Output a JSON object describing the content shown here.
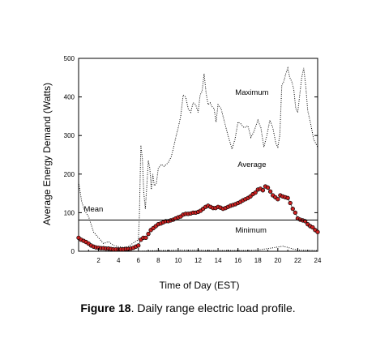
{
  "caption": {
    "label": "Figure 18",
    "text": ".  Daily range electric load profile."
  },
  "chart_data": {
    "type": "line",
    "xlabel": "Time of Day (EST)",
    "ylabel": "Average Energy Demand (Watts)",
    "xlim": [
      0,
      24
    ],
    "ylim": [
      0,
      500
    ],
    "x_ticks": [
      2,
      4,
      6,
      8,
      10,
      12,
      14,
      16,
      18,
      20,
      22,
      24
    ],
    "y_ticks": [
      0,
      100,
      200,
      300,
      400,
      500
    ],
    "grid": false,
    "colors": {
      "average_marker": "#cc2222",
      "lines": "#000000"
    },
    "annotations": [
      {
        "text": "Maximum",
        "x": 17.4,
        "y": 405
      },
      {
        "text": "Average",
        "x": 17.4,
        "y": 218
      },
      {
        "text": "Mean",
        "x": 1.5,
        "y": 103
      },
      {
        "text": "Minimum",
        "x": 17.3,
        "y": 48
      }
    ],
    "series": [
      {
        "name": "Maximum",
        "style": "dotted",
        "x": [
          0,
          0.3,
          0.6,
          1.0,
          1.5,
          2.0,
          2.5,
          3.0,
          3.5,
          4.0,
          4.5,
          5.0,
          5.4,
          5.7,
          6.0,
          6.1,
          6.25,
          6.4,
          6.55,
          6.7,
          6.85,
          7.0,
          7.15,
          7.3,
          7.45,
          7.6,
          7.8,
          8.0,
          8.3,
          8.6,
          9.0,
          9.3,
          9.5,
          9.8,
          10.0,
          10.25,
          10.5,
          10.75,
          11.0,
          11.25,
          11.5,
          11.75,
          12.0,
          12.2,
          12.4,
          12.6,
          12.8,
          13.0,
          13.2,
          13.4,
          13.6,
          13.8,
          14.0,
          14.3,
          14.6,
          15.0,
          15.4,
          15.7,
          16.0,
          16.3,
          16.6,
          17.0,
          17.3,
          17.6,
          18.0,
          18.3,
          18.6,
          18.9,
          19.2,
          19.5,
          19.8,
          20.0,
          20.2,
          20.4,
          20.6,
          20.8,
          21.0,
          21.2,
          21.4,
          21.6,
          21.8,
          22.0,
          22.2,
          22.4,
          22.6,
          22.8,
          23.0,
          23.3,
          23.6,
          24.0
        ],
        "y": [
          180,
          130,
          105,
          90,
          50,
          35,
          20,
          25,
          15,
          12,
          10,
          12,
          20,
          25,
          30,
          90,
          275,
          240,
          150,
          110,
          170,
          235,
          215,
          160,
          200,
          170,
          175,
          215,
          225,
          220,
          230,
          245,
          265,
          300,
          320,
          350,
          405,
          400,
          370,
          360,
          385,
          380,
          360,
          405,
          415,
          460,
          410,
          380,
          385,
          375,
          370,
          335,
          380,
          370,
          340,
          300,
          265,
          290,
          335,
          330,
          320,
          325,
          295,
          310,
          340,
          320,
          270,
          300,
          340,
          320,
          280,
          270,
          300,
          430,
          440,
          460,
          475,
          450,
          440,
          420,
          370,
          360,
          405,
          450,
          475,
          430,
          365,
          330,
          290,
          270
        ]
      },
      {
        "name": "Average",
        "style": "markers",
        "x": [
          0,
          0.25,
          0.5,
          0.75,
          1.0,
          1.25,
          1.5,
          1.75,
          2.0,
          2.25,
          2.5,
          2.75,
          3.0,
          3.25,
          3.5,
          3.75,
          4.0,
          4.25,
          4.5,
          4.75,
          5.0,
          5.25,
          5.5,
          5.75,
          6.0,
          6.25,
          6.5,
          6.75,
          7.0,
          7.25,
          7.5,
          7.75,
          8.0,
          8.25,
          8.5,
          8.75,
          9.0,
          9.25,
          9.5,
          9.75,
          10.0,
          10.25,
          10.5,
          10.75,
          11.0,
          11.25,
          11.5,
          11.75,
          12.0,
          12.25,
          12.5,
          12.75,
          13.0,
          13.25,
          13.5,
          13.75,
          14.0,
          14.25,
          14.5,
          14.75,
          15.0,
          15.25,
          15.5,
          15.75,
          16.0,
          16.25,
          16.5,
          16.75,
          17.0,
          17.25,
          17.5,
          17.75,
          18.0,
          18.25,
          18.5,
          18.75,
          19.0,
          19.25,
          19.5,
          19.75,
          20.0,
          20.25,
          20.5,
          20.75,
          21.0,
          21.25,
          21.5,
          21.75,
          22.0,
          22.25,
          22.5,
          22.75,
          23.0,
          23.25,
          23.5,
          23.75,
          24.0
        ],
        "y": [
          35,
          30,
          27,
          24,
          20,
          15,
          12,
          10,
          9,
          8,
          8,
          7,
          7,
          6,
          5,
          5,
          5,
          5,
          5,
          6,
          6,
          7,
          9,
          12,
          15,
          30,
          35,
          35,
          45,
          55,
          60,
          65,
          70,
          72,
          75,
          78,
          78,
          80,
          82,
          85,
          88,
          90,
          95,
          97,
          97,
          98,
          100,
          100,
          102,
          105,
          110,
          115,
          118,
          115,
          112,
          112,
          115,
          113,
          110,
          112,
          115,
          118,
          120,
          122,
          125,
          128,
          132,
          135,
          138,
          142,
          148,
          152,
          160,
          162,
          158,
          168,
          165,
          155,
          145,
          140,
          135,
          145,
          142,
          140,
          138,
          125,
          110,
          100,
          85,
          82,
          80,
          78,
          70,
          65,
          62,
          55,
          50
        ]
      },
      {
        "name": "Minimum",
        "style": "dotted",
        "x": [
          0,
          2,
          4,
          6,
          7,
          8,
          9,
          10,
          11,
          12,
          13,
          14,
          15,
          16,
          17,
          18,
          18.5,
          19,
          19.5,
          20,
          20.5,
          21,
          21.5,
          22,
          24
        ],
        "y": [
          0,
          0,
          0,
          0,
          1,
          2,
          2,
          3,
          3,
          3,
          2,
          2,
          2,
          2,
          2,
          3,
          5,
          7,
          9,
          11,
          13,
          10,
          6,
          3,
          2
        ]
      },
      {
        "name": "Mean",
        "style": "solid-horizontal",
        "x": [
          0,
          24
        ],
        "y": [
          81,
          81
        ]
      }
    ]
  }
}
